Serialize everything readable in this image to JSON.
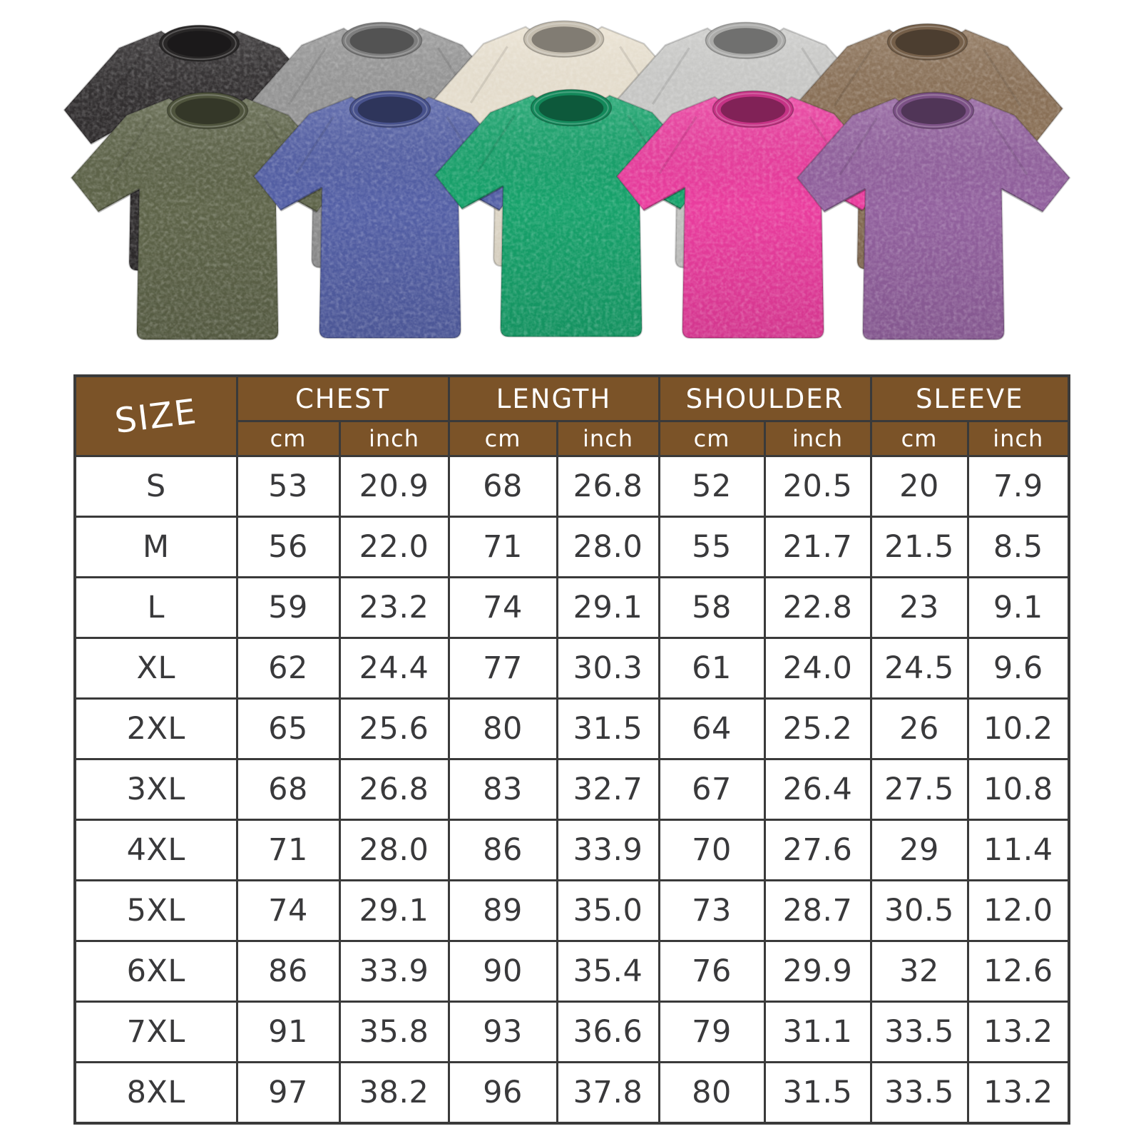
{
  "product_gallery": {
    "shirts": [
      {
        "id": "washed-black",
        "color": "#312e2f",
        "row": "back"
      },
      {
        "id": "washed-gray",
        "color": "#969696",
        "row": "back"
      },
      {
        "id": "washed-beige",
        "color": "#eae2d1",
        "row": "back"
      },
      {
        "id": "washed-light-gray",
        "color": "#cbcbc9",
        "row": "back"
      },
      {
        "id": "washed-brown",
        "color": "#8b7157",
        "row": "back"
      },
      {
        "id": "washed-army-green",
        "color": "#5e6449",
        "row": "front"
      },
      {
        "id": "washed-blue",
        "color": "#5460a6",
        "row": "front"
      },
      {
        "id": "washed-green",
        "color": "#17a26b",
        "row": "front"
      },
      {
        "id": "washed-rose",
        "color": "#ea3d9e",
        "row": "front"
      },
      {
        "id": "washed-purple",
        "color": "#92619e",
        "row": "front"
      }
    ]
  },
  "size_chart": {
    "title_col": "SIZE",
    "groups": [
      "CHEST",
      "LENGTH",
      "SHOULDER",
      "SLEEVE"
    ],
    "units": [
      "cm",
      "inch"
    ],
    "rows": [
      {
        "size": "S",
        "values": [
          "53",
          "20.9",
          "68",
          "26.8",
          "52",
          "20.5",
          "20",
          "7.9"
        ]
      },
      {
        "size": "M",
        "values": [
          "56",
          "22.0",
          "71",
          "28.0",
          "55",
          "21.7",
          "21.5",
          "8.5"
        ]
      },
      {
        "size": "L",
        "values": [
          "59",
          "23.2",
          "74",
          "29.1",
          "58",
          "22.8",
          "23",
          "9.1"
        ]
      },
      {
        "size": "XL",
        "values": [
          "62",
          "24.4",
          "77",
          "30.3",
          "61",
          "24.0",
          "24.5",
          "9.6"
        ]
      },
      {
        "size": "2XL",
        "values": [
          "65",
          "25.6",
          "80",
          "31.5",
          "64",
          "25.2",
          "26",
          "10.2"
        ]
      },
      {
        "size": "3XL",
        "values": [
          "68",
          "26.8",
          "83",
          "32.7",
          "67",
          "26.4",
          "27.5",
          "10.8"
        ]
      },
      {
        "size": "4XL",
        "values": [
          "71",
          "28.0",
          "86",
          "33.9",
          "70",
          "27.6",
          "29",
          "11.4"
        ]
      },
      {
        "size": "5XL",
        "values": [
          "74",
          "29.1",
          "89",
          "35.0",
          "73",
          "28.7",
          "30.5",
          "12.0"
        ]
      },
      {
        "size": "6XL",
        "values": [
          "86",
          "33.9",
          "90",
          "35.4",
          "76",
          "29.9",
          "32",
          "12.6"
        ]
      },
      {
        "size": "7XL",
        "values": [
          "91",
          "35.8",
          "93",
          "36.6",
          "79",
          "31.1",
          "33.5",
          "13.2"
        ]
      },
      {
        "size": "8XL",
        "values": [
          "97",
          "38.2",
          "96",
          "37.8",
          "80",
          "31.5",
          "33.5",
          "13.2"
        ]
      }
    ],
    "style": {
      "header_bg": "#7b5328",
      "header_text": "#ffffff",
      "border": "#3a3a3a",
      "cell_text": "#39393b"
    }
  }
}
